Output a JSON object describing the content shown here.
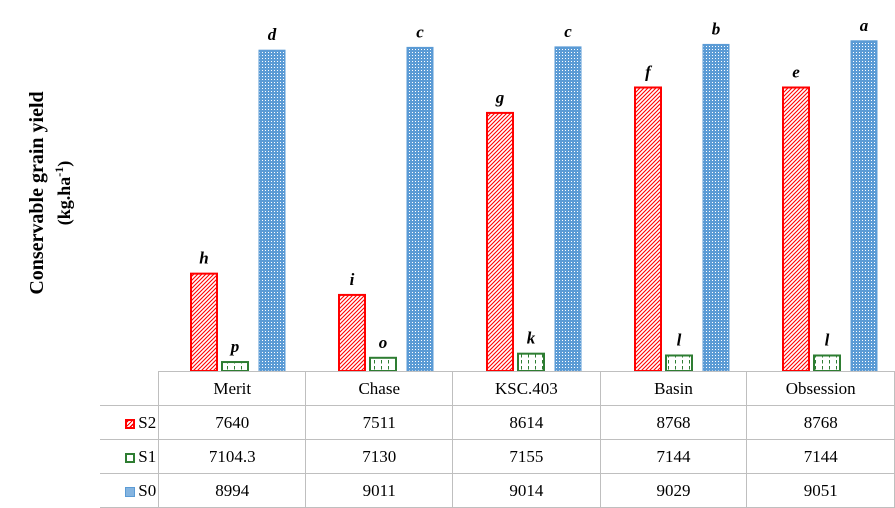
{
  "chart_data": {
    "type": "bar",
    "ylabel": "Conservable grain yield",
    "ylabel_unit": "(kg.ha",
    "ylabel_unit_sup": "-1",
    "ylabel_unit_end": ")",
    "categories": [
      "Merit",
      "Chase",
      "KSC.403",
      "Basin",
      "Obsession"
    ],
    "series": [
      {
        "name": "S2",
        "values": [
          7640,
          7511,
          8614,
          8768,
          8768
        ],
        "letters": [
          "h",
          "i",
          "g",
          "f",
          "e"
        ],
        "color": "#ff0000",
        "pattern": "diagonal-hatch"
      },
      {
        "name": "S1",
        "values": [
          7104.3,
          7130,
          7155,
          7144,
          7144
        ],
        "letters": [
          "p",
          "o",
          "k",
          "l",
          "l"
        ],
        "color": "#2e7d32",
        "pattern": "dashed-vertical"
      },
      {
        "name": "S0",
        "values": [
          8994,
          9011,
          9014,
          9029,
          9051
        ],
        "letters": [
          "d",
          "c",
          "c",
          "b",
          "a"
        ],
        "color": "#5b9bd5",
        "pattern": "dotted"
      }
    ],
    "ylim": [
      7050,
      9080
    ],
    "grid": false,
    "legend": "data-table"
  }
}
